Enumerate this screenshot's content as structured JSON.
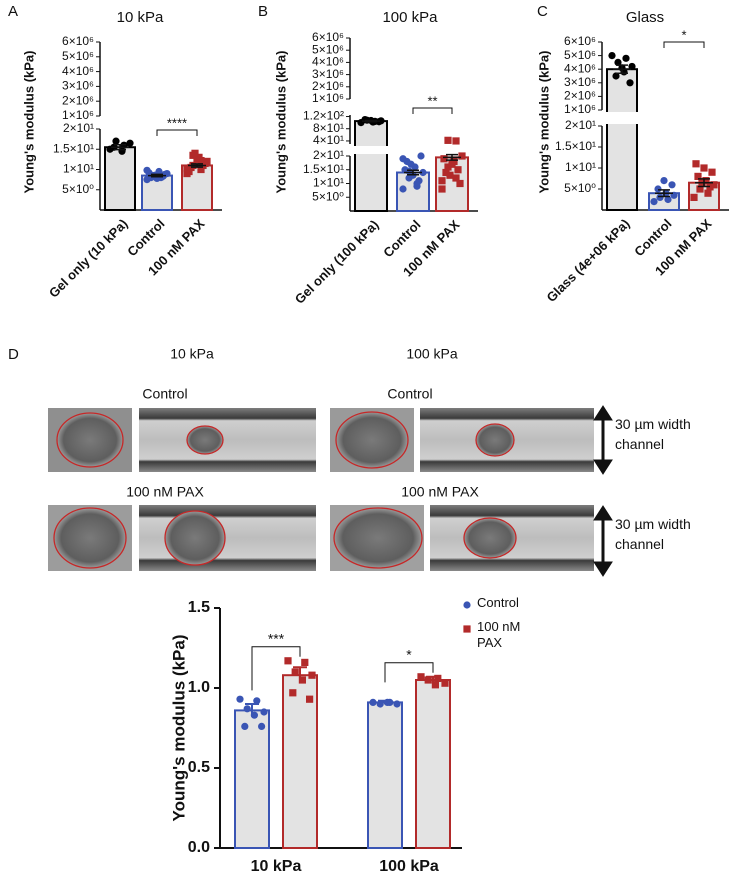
{
  "chart_data": [
    {
      "type": "bar",
      "panel": "A",
      "title": "10 kPa",
      "ylabel": "Young's modulus (kPa)",
      "categories": [
        "Gel only (10 kPa)",
        "Control",
        "100 nM PAX"
      ],
      "values": [
        15.5,
        8.5,
        11
      ],
      "errors": [
        0.6,
        0.3,
        0.4
      ],
      "points": [
        [
          15,
          16,
          17,
          16.5,
          14.5,
          15.5
        ],
        [
          7.5,
          8,
          8.5,
          9,
          9.5,
          8,
          8.8,
          7.8,
          9.2,
          8.3,
          8.6,
          9.8
        ],
        [
          9,
          10,
          11,
          12,
          13,
          10.5,
          11.5,
          12.5,
          9.5,
          11,
          14,
          10.2,
          12.2,
          13.5
        ]
      ],
      "colors": [
        "#000000",
        "#3a55b4",
        "#b22a2a"
      ],
      "markers": [
        "circle",
        "circle",
        "square"
      ],
      "bar_fill": "#e3e3e3",
      "y_segments": [
        {
          "ylim": [
            0,
            20
          ],
          "yticks": [
            {
              "value": 5,
              "label": "5×10⁰"
            },
            {
              "value": 10,
              "label": "1×10¹"
            },
            {
              "value": 15,
              "label": "1.5×10¹"
            },
            {
              "value": 20,
              "label": "2×10¹"
            }
          ]
        },
        {
          "ylim": [
            1000000,
            6000000
          ],
          "yticks": [
            {
              "value": 1000000,
              "label": "1×10⁶"
            },
            {
              "value": 2000000,
              "label": "2×10⁶"
            },
            {
              "value": 3000000,
              "label": "3×10⁶"
            },
            {
              "value": 4000000,
              "label": "4×10⁶"
            },
            {
              "value": 5000000,
              "label": "5×10⁶"
            },
            {
              "value": 6000000,
              "label": "6×10⁶"
            }
          ]
        }
      ],
      "significance": "****"
    },
    {
      "type": "bar",
      "panel": "B",
      "title": "100 kPa",
      "ylabel": "Young's modulus (kPa)",
      "categories": [
        "Gel only (100 kPa)",
        "Control",
        "100 nM PAX"
      ],
      "values": [
        105,
        14,
        19.5
      ],
      "errors": [
        2,
        0.8,
        1
      ],
      "points": [
        [
          100,
          104,
          108,
          106,
          102,
          110,
          103,
          107
        ],
        [
          8,
          10,
          12,
          14,
          16,
          18,
          20,
          13,
          15,
          11,
          17,
          19,
          9,
          14.5
        ],
        [
          8,
          12,
          16,
          20,
          18,
          14,
          10,
          17,
          19,
          15,
          13,
          11,
          40,
          42
        ]
      ],
      "colors": [
        "#000000",
        "#3a55b4",
        "#b22a2a"
      ],
      "markers": [
        "circle",
        "circle",
        "square"
      ],
      "bar_fill": "#e3e3e3",
      "y_segments": [
        {
          "ylim": [
            0,
            20
          ],
          "yticks": [
            {
              "value": 5,
              "label": "5×10⁰"
            },
            {
              "value": 10,
              "label": "1×10¹"
            },
            {
              "value": 15,
              "label": "1.5×10¹"
            },
            {
              "value": 20,
              "label": "2×10¹"
            }
          ]
        },
        {
          "ylim": [
            30,
            125
          ],
          "yticks": [
            {
              "value": 40,
              "label": "4×10¹"
            },
            {
              "value": 80,
              "label": "8×10¹"
            },
            {
              "value": 120,
              "label": "1.2×10²"
            }
          ]
        },
        {
          "ylim": [
            1000000,
            6000000
          ],
          "yticks": [
            {
              "value": 1000000,
              "label": "1×10⁶"
            },
            {
              "value": 2000000,
              "label": "2×10⁶"
            },
            {
              "value": 3000000,
              "label": "3×10⁶"
            },
            {
              "value": 4000000,
              "label": "4×10⁶"
            },
            {
              "value": 5000000,
              "label": "5×10⁶"
            },
            {
              "value": 6000000,
              "label": "6×10⁶"
            }
          ]
        }
      ],
      "significance": "**"
    },
    {
      "type": "bar",
      "panel": "C",
      "title": "Glass",
      "ylabel": "Young's modulus (kPa)",
      "categories": [
        "Glass (4e+06 kPa)",
        "Control",
        "100 nM PAX"
      ],
      "values": [
        4000000,
        4,
        6.5
      ],
      "errors": [
        300000,
        0.8,
        0.9
      ],
      "points": [
        [
          5000000,
          4800000,
          4500000,
          4200000,
          3800000,
          3500000,
          3000000,
          4100000
        ],
        [
          2,
          2.5,
          3,
          3.5,
          4,
          5,
          6,
          7
        ],
        [
          3,
          4,
          5,
          6,
          7,
          8,
          9,
          10,
          11,
          5.5,
          6.5
        ]
      ],
      "colors": [
        "#000000",
        "#3a55b4",
        "#b22a2a"
      ],
      "markers": [
        "circle",
        "circle",
        "square"
      ],
      "bar_fill": "#e3e3e3",
      "y_segments": [
        {
          "ylim": [
            0,
            20
          ],
          "yticks": [
            {
              "value": 5,
              "label": "5×10⁰"
            },
            {
              "value": 10,
              "label": "1×10¹"
            },
            {
              "value": 15,
              "label": "1.5×10¹"
            },
            {
              "value": 20,
              "label": "2×10¹"
            }
          ]
        },
        {
          "ylim": [
            1000000,
            6000000
          ],
          "yticks": [
            {
              "value": 1000000,
              "label": "1×10⁶"
            },
            {
              "value": 2000000,
              "label": "2×10⁶"
            },
            {
              "value": 3000000,
              "label": "3×10⁶"
            },
            {
              "value": 4000000,
              "label": "4×10⁶"
            },
            {
              "value": 5000000,
              "label": "5×10⁶"
            },
            {
              "value": 6000000,
              "label": "6×10⁶"
            }
          ]
        }
      ],
      "significance": "*"
    },
    {
      "type": "grouped_bar",
      "ylabel": "Young's modulus (kPa)",
      "categories": [
        "10 kPa",
        "100 kPa"
      ],
      "series": [
        {
          "name": "Control",
          "color": "#3a55b4",
          "marker": "circle",
          "values": [
            0.86,
            0.91
          ],
          "errors": [
            0.04,
            0.01
          ],
          "points": [
            [
              0.93,
              0.92,
              0.87,
              0.85,
              0.83,
              0.76,
              0.76
            ],
            [
              0.91,
              0.91,
              0.9,
              0.9,
              0.91
            ]
          ]
        },
        {
          "name": "100 nM PAX",
          "color": "#b22a2a",
          "marker": "square",
          "values": [
            1.08,
            1.05
          ],
          "errors": [
            0.05,
            0.02
          ],
          "points": [
            [
              1.17,
              1.16,
              1.1,
              1.08,
              1.05,
              0.97,
              0.93
            ],
            [
              1.07,
              1.06,
              1.05,
              1.03,
              1.02
            ]
          ]
        }
      ],
      "ylim": [
        0,
        1.5
      ],
      "yticks": [
        {
          "value": 0,
          "label": "0.0"
        },
        0.5,
        {
          "value": 1,
          "label": "1.0"
        },
        1.5
      ],
      "significance": [
        "***",
        "*"
      ],
      "bar_fill": "#e3e3e3",
      "legend": "upper right"
    }
  ],
  "panel_d": {
    "label": "D",
    "columns": [
      "10 kPa",
      "100 kPa"
    ],
    "rows": [
      "Control",
      "100 nM PAX"
    ],
    "channel_label": "30 µm width channel"
  }
}
